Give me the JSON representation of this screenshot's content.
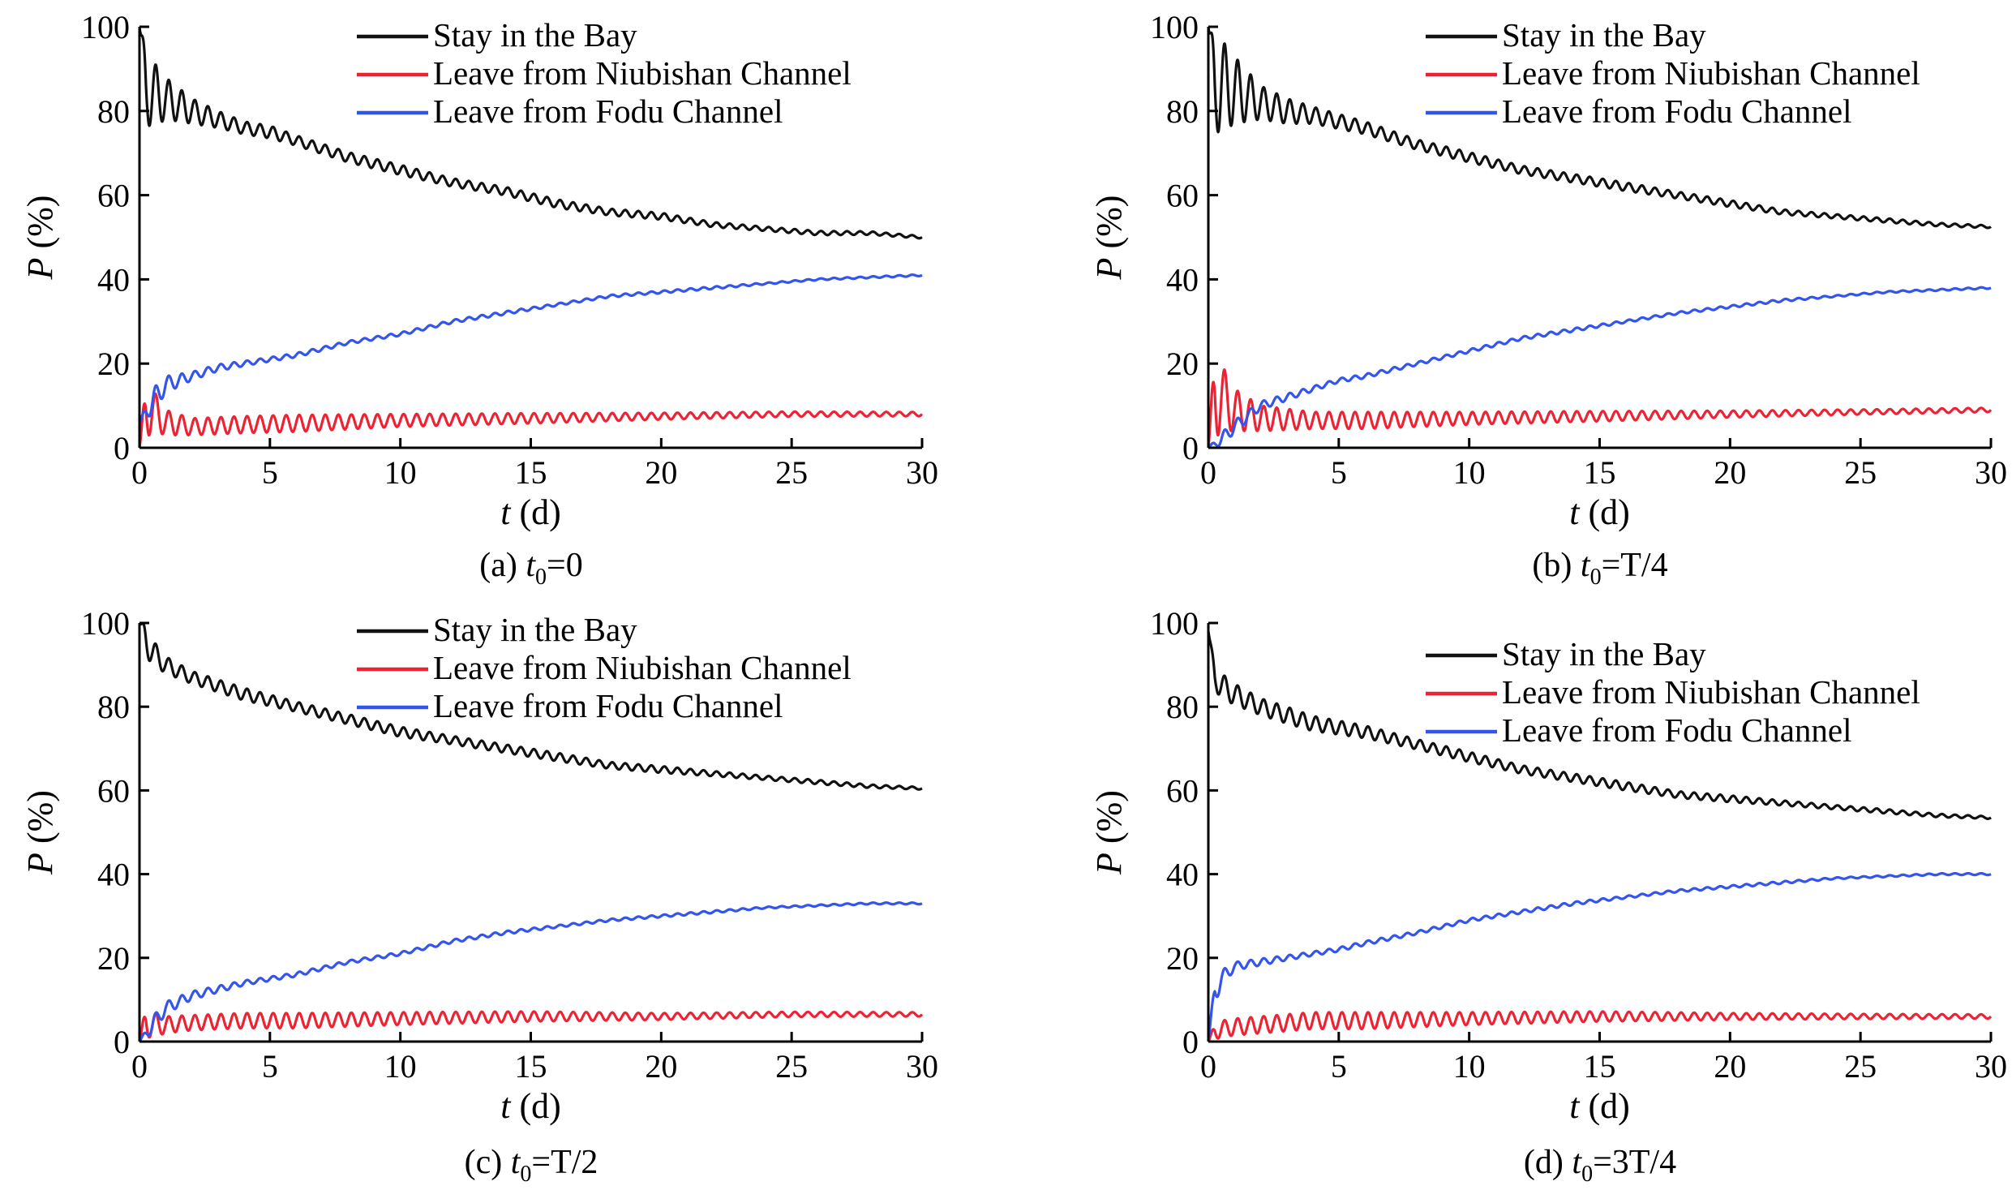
{
  "colors": {
    "stay": "#111111",
    "niubishan": "#ee2233",
    "fodu": "#3355ee",
    "axis": "#000000"
  },
  "chart_data": [
    {
      "type": "line",
      "panel": "(a)",
      "caption": {
        "prefix": "(a) ",
        "var": "t",
        "sub": "0",
        "rest": "=0"
      },
      "xlabel_var": "t",
      "xlabel_unit": " (d)",
      "ylabel_var": "P",
      "ylabel_unit": " (%)",
      "xlim": [
        0,
        30
      ],
      "ylim": [
        0,
        100
      ],
      "xticks": [
        0,
        5,
        10,
        15,
        20,
        25,
        30
      ],
      "yticks": [
        0,
        20,
        40,
        60,
        80,
        100
      ],
      "grid": false,
      "legend_position": "top-right",
      "series": [
        {
          "name": "Stay in the Bay",
          "color_key": "stay",
          "x": [
            0,
            0.25,
            0.5,
            1,
            2,
            3,
            4,
            5,
            6,
            8,
            10,
            12,
            14,
            16,
            18,
            20,
            22,
            24,
            26,
            28,
            30
          ],
          "y": [
            100,
            86,
            84,
            83,
            80,
            78,
            76,
            75,
            73,
            69,
            66,
            63,
            61,
            58,
            56,
            55,
            53,
            52,
            51,
            51,
            50
          ],
          "osc_amp": [
            0,
            9,
            8,
            5,
            3,
            2,
            1.5,
            1.5,
            1.2,
            1.2,
            1.2,
            1,
            1,
            1,
            0.8,
            0.8,
            0.6,
            0.5,
            0.5,
            0.4,
            0.3
          ]
        },
        {
          "name": "Leave from Niubishan Channel",
          "color_key": "niubishan",
          "x": [
            0,
            0.25,
            0.5,
            1,
            2,
            4,
            6,
            10,
            15,
            20,
            25,
            30
          ],
          "y": [
            0,
            9,
            9,
            6,
            5,
            5.5,
            5.8,
            6.5,
            7,
            7.5,
            8,
            8
          ],
          "osc_amp": [
            0,
            7,
            5,
            3,
            2,
            2,
            2,
            1.5,
            1.2,
            0.8,
            0.6,
            0.5
          ]
        },
        {
          "name": "Leave from Fodu Channel",
          "color_key": "fodu",
          "x": [
            0,
            0.5,
            1,
            2,
            3,
            4,
            5,
            6,
            8,
            10,
            12,
            14,
            16,
            18,
            20,
            22,
            24,
            26,
            28,
            30
          ],
          "y": [
            6,
            11,
            15,
            17,
            19,
            20,
            21,
            22,
            25,
            27,
            30,
            32,
            34,
            36,
            37,
            38,
            39,
            40,
            40.5,
            41
          ],
          "osc_amp": [
            0,
            3,
            2,
            1,
            0.8,
            0.6,
            0.5,
            0.5,
            0.4,
            0.4,
            0.4,
            0.4,
            0.3,
            0.3,
            0.3,
            0.3,
            0.2,
            0.2,
            0.2,
            0.2
          ]
        }
      ]
    },
    {
      "type": "line",
      "panel": "(b)",
      "caption": {
        "prefix": "(b) ",
        "var": "t",
        "sub": "0",
        "rest": "=T/4"
      },
      "xlabel_var": "t",
      "xlabel_unit": " (d)",
      "ylabel_var": "P",
      "ylabel_unit": " (%)",
      "xlim": [
        0,
        30
      ],
      "ylim": [
        0,
        100
      ],
      "xticks": [
        0,
        5,
        10,
        15,
        20,
        25,
        30
      ],
      "yticks": [
        0,
        20,
        40,
        60,
        80,
        100
      ],
      "grid": false,
      "legend_position": "top-right",
      "series": [
        {
          "name": "Stay in the Bay",
          "color_key": "stay",
          "x": [
            0,
            0.25,
            0.5,
            1,
            2,
            3,
            4,
            6,
            8,
            10,
            12,
            14,
            16,
            18,
            20,
            22,
            24,
            26,
            28,
            30
          ],
          "y": [
            100,
            86,
            86,
            85,
            82,
            80,
            79,
            76,
            72,
            69,
            66,
            64,
            62,
            60,
            58,
            56,
            55,
            54,
            53,
            52.5
          ],
          "osc_amp": [
            0,
            11,
            11,
            8,
            4,
            3,
            2,
            1.5,
            1.2,
            1.2,
            1,
            1,
            1,
            0.8,
            0.8,
            0.6,
            0.5,
            0.5,
            0.4,
            0.3
          ]
        },
        {
          "name": "Leave from Niubishan Channel",
          "color_key": "niubishan",
          "x": [
            0,
            0.25,
            0.5,
            1,
            2,
            4,
            6,
            10,
            15,
            20,
            25,
            30
          ],
          "y": [
            0,
            13,
            12,
            9,
            7,
            6.5,
            6.5,
            7,
            7.5,
            8,
            8.5,
            9
          ],
          "osc_amp": [
            0,
            11,
            8,
            5,
            3,
            2,
            2,
            1.5,
            1.2,
            0.8,
            0.6,
            0.5
          ]
        },
        {
          "name": "Leave from Fodu Channel",
          "color_key": "fodu",
          "x": [
            0,
            0.5,
            1,
            2,
            3,
            4,
            5,
            6,
            8,
            10,
            12,
            14,
            16,
            18,
            20,
            22,
            24,
            26,
            28,
            30
          ],
          "y": [
            0,
            2,
            5,
            10,
            12,
            14,
            16,
            17,
            20,
            23,
            26,
            28,
            30,
            32,
            33.5,
            35,
            36,
            37,
            37.5,
            38
          ],
          "osc_amp": [
            0,
            1.5,
            1.5,
            1,
            0.8,
            0.6,
            0.5,
            0.5,
            0.4,
            0.4,
            0.4,
            0.4,
            0.3,
            0.3,
            0.3,
            0.3,
            0.2,
            0.2,
            0.2,
            0.2
          ]
        }
      ]
    },
    {
      "type": "line",
      "panel": "(c)",
      "caption": {
        "prefix": "(c)  ",
        "var": "t",
        "sub": "0",
        "rest": "=T/2"
      },
      "xlabel_var": "t",
      "xlabel_unit": " (d)",
      "ylabel_var": "P",
      "ylabel_unit": " (%)",
      "xlim": [
        0,
        30
      ],
      "ylim": [
        0,
        100
      ],
      "xticks": [
        0,
        5,
        10,
        15,
        20,
        25,
        30
      ],
      "yticks": [
        0,
        20,
        40,
        60,
        80,
        100
      ],
      "grid": false,
      "legend_position": "top-right",
      "series": [
        {
          "name": "Stay in the Bay",
          "color_key": "stay",
          "x": [
            0,
            0.25,
            0.5,
            1,
            2,
            3,
            4,
            6,
            8,
            10,
            12,
            14,
            16,
            18,
            20,
            22,
            24,
            26,
            28,
            30
          ],
          "y": [
            100,
            96,
            93,
            90,
            87,
            85,
            83,
            80,
            77,
            74,
            72,
            70,
            68,
            66,
            65,
            64,
            63,
            62,
            61,
            60.5
          ],
          "osc_amp": [
            0,
            4,
            3,
            2,
            1.5,
            1.5,
            1.5,
            1.2,
            1.2,
            1.2,
            1,
            1,
            1,
            0.8,
            0.8,
            0.6,
            0.5,
            0.5,
            0.4,
            0.3
          ]
        },
        {
          "name": "Leave from Niubishan Channel",
          "color_key": "niubishan",
          "x": [
            0,
            0.25,
            0.5,
            1,
            2,
            4,
            6,
            10,
            15,
            20,
            25,
            30
          ],
          "y": [
            0,
            5,
            4,
            4,
            4.5,
            5,
            5,
            5.5,
            6,
            6,
            6.5,
            6.5
          ],
          "osc_amp": [
            0,
            4,
            3,
            2,
            1.8,
            1.8,
            1.8,
            1.5,
            1.2,
            0.8,
            0.6,
            0.5
          ]
        },
        {
          "name": "Leave from Fodu Channel",
          "color_key": "fodu",
          "x": [
            0,
            0.5,
            1,
            2,
            3,
            4,
            5,
            6,
            8,
            10,
            12,
            14,
            16,
            18,
            20,
            22,
            24,
            26,
            28,
            30
          ],
          "y": [
            0,
            4,
            8,
            11,
            12.5,
            14,
            15,
            16,
            19,
            21,
            24,
            26,
            27.5,
            29,
            30,
            31,
            32,
            32.5,
            33,
            33
          ],
          "osc_amp": [
            0,
            2,
            1.5,
            1,
            0.8,
            0.6,
            0.5,
            0.5,
            0.4,
            0.4,
            0.4,
            0.4,
            0.3,
            0.3,
            0.3,
            0.3,
            0.2,
            0.2,
            0.2,
            0.2
          ]
        }
      ]
    },
    {
      "type": "line",
      "panel": "(d)",
      "caption": {
        "prefix": "(d) ",
        "var": "t",
        "sub": "0",
        "rest": "=3T/4"
      },
      "xlabel_var": "t",
      "xlabel_unit": " (d)",
      "ylabel_var": "P",
      "ylabel_unit": " (%)",
      "xlim": [
        0,
        30
      ],
      "ylim": [
        0,
        100
      ],
      "xticks": [
        0,
        5,
        10,
        15,
        20,
        25,
        30
      ],
      "yticks": [
        0,
        20,
        40,
        60,
        80,
        100
      ],
      "grid": false,
      "legend_position": "top-right",
      "series": [
        {
          "name": "Stay in the Bay",
          "color_key": "stay",
          "x": [
            0,
            0.25,
            0.5,
            1,
            2,
            3,
            4,
            6,
            8,
            10,
            12,
            14,
            16,
            18,
            20,
            22,
            24,
            26,
            28,
            30
          ],
          "y": [
            98,
            87,
            85,
            83,
            80,
            78,
            76,
            74,
            71,
            68,
            65,
            63,
            61,
            59,
            58,
            57,
            56,
            55,
            54,
            53.5
          ],
          "osc_amp": [
            0,
            3,
            3,
            2.5,
            2,
            2,
            1.8,
            1.5,
            1.2,
            1.2,
            1,
            1,
            1,
            0.8,
            0.8,
            0.6,
            0.5,
            0.5,
            0.4,
            0.3
          ]
        },
        {
          "name": "Leave from Niubishan Channel",
          "color_key": "niubishan",
          "x": [
            0,
            0.25,
            0.5,
            1,
            2,
            4,
            6,
            10,
            15,
            20,
            25,
            30
          ],
          "y": [
            0,
            2.5,
            3,
            3.5,
            4,
            5,
            5,
            5.5,
            6,
            6,
            6,
            6
          ],
          "osc_amp": [
            0,
            2,
            2,
            2,
            2,
            2,
            2,
            1.5,
            1.2,
            0.8,
            0.6,
            0.5
          ]
        },
        {
          "name": "Leave from Fodu Channel",
          "color_key": "fodu",
          "x": [
            0,
            0.25,
            0.5,
            1,
            2,
            3,
            4,
            5,
            6,
            8,
            10,
            12,
            14,
            16,
            18,
            20,
            22,
            24,
            26,
            28,
            30
          ],
          "y": [
            0,
            12,
            15,
            18,
            19,
            20,
            21,
            22,
            23.5,
            26,
            29,
            31,
            33,
            34.5,
            36,
            37,
            38,
            39,
            39.5,
            40,
            40
          ],
          "osc_amp": [
            0,
            3,
            2,
            1,
            0.8,
            0.6,
            0.5,
            0.5,
            0.5,
            0.4,
            0.4,
            0.4,
            0.4,
            0.3,
            0.3,
            0.3,
            0.3,
            0.2,
            0.2,
            0.2,
            0.2
          ]
        }
      ]
    }
  ]
}
